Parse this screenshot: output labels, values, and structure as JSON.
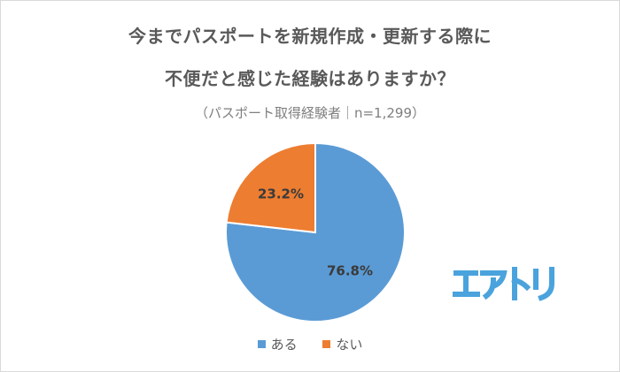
{
  "header": {
    "title_line1": "今までパスポートを新規作成・更新する際に",
    "title_line2": "不便だと感じた経験はありますか？",
    "subtitle": "（パスポート取得経験者｜n=1,299）"
  },
  "chart_data": {
    "type": "pie",
    "categories": [
      "ある",
      "ない"
    ],
    "values": [
      76.8,
      23.2
    ],
    "labels": [
      "76.8%",
      "23.2%"
    ],
    "colors": [
      "#5b9bd5",
      "#ed7d31"
    ],
    "legend_position": "bottom",
    "n": 1299
  },
  "logo": {
    "text": "エアトリ",
    "color": "#4aa3dc"
  }
}
